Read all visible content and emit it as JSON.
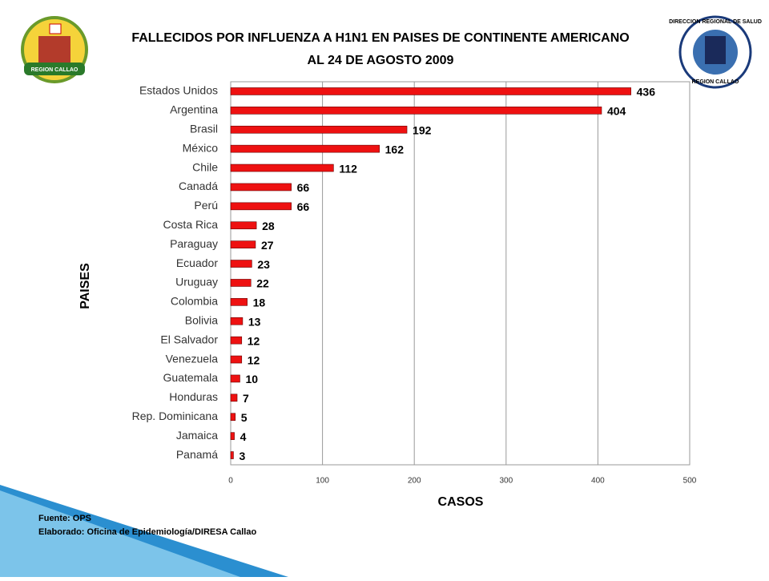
{
  "chart_data": {
    "type": "bar",
    "orientation": "horizontal",
    "title": "FALLECIDOS POR INFLUENZA A H1N1 EN PAISES DE CONTINENTE AMERICANO",
    "subtitle": "AL 24 DE AGOSTO 2009",
    "x_label": "CASOS",
    "y_label": "PAISES",
    "categories": [
      "Estados Unidos",
      "Argentina",
      "Brasil",
      "México",
      "Chile",
      "Canadá",
      "Perú",
      "Costa Rica",
      "Paraguay",
      "Ecuador",
      "Uruguay",
      "Colombia",
      "Bolivia",
      "El Salvador",
      "Venezuela",
      "Guatemala",
      "Honduras",
      "Rep. Dominicana",
      "Jamaica",
      "Panamá"
    ],
    "values": [
      436,
      404,
      192,
      162,
      112,
      66,
      66,
      28,
      27,
      23,
      22,
      18,
      13,
      12,
      12,
      10,
      7,
      5,
      4,
      3
    ],
    "color": "#ee1111",
    "xlim": [
      0,
      500
    ],
    "xticks": [
      0,
      100,
      200,
      300,
      400,
      500
    ],
    "grid": true,
    "notes": [
      "Fuente: OPS",
      "Elaborado: Oficina de Epidemiología/DIRESA Callao"
    ],
    "logos": [
      "REGION CALLAO",
      "DIRECCION REGIONAL DE SALUD",
      "REGION CALLAO"
    ]
  }
}
